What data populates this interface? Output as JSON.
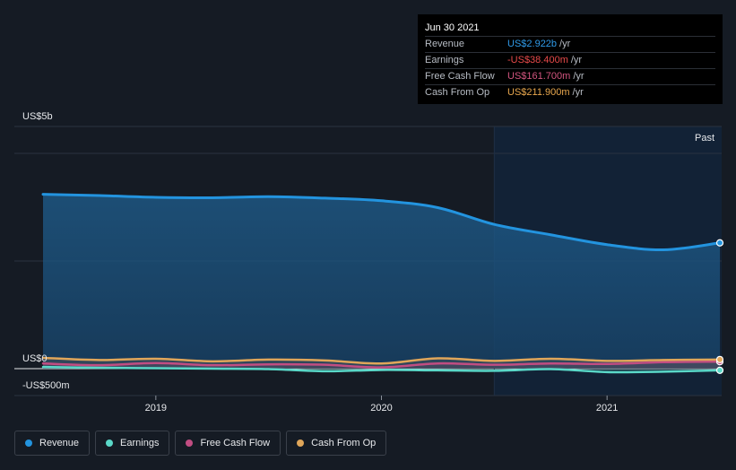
{
  "tooltip": {
    "date": "Jun 30 2021",
    "rows": [
      {
        "label": "Revenue",
        "value": "US$2.922b",
        "unit": "/yr",
        "color": "#2f9ae8"
      },
      {
        "label": "Earnings",
        "value": "-US$38.400m",
        "unit": "/yr",
        "color": "#e84a4a"
      },
      {
        "label": "Free Cash Flow",
        "value": "US$161.700m",
        "unit": "/yr",
        "color": "#d2557f"
      },
      {
        "label": "Cash From Op",
        "value": "US$211.900m",
        "unit": "/yr",
        "color": "#e8a74e"
      }
    ]
  },
  "legend": [
    {
      "label": "Revenue",
      "color": "#2394df"
    },
    {
      "label": "Earnings",
      "color": "#5ad8c8"
    },
    {
      "label": "Free Cash Flow",
      "color": "#c14d82"
    },
    {
      "label": "Cash From Op",
      "color": "#e0a65a"
    }
  ],
  "chart_data": {
    "type": "line",
    "title": "",
    "y_unit_labels": {
      "top": "US$5b",
      "zero": "US$0",
      "bottom": "-US$500m"
    },
    "ylim": [
      -500,
      5000
    ],
    "past_label": "Past",
    "x_ticks": [
      {
        "label": "2019",
        "x": 2019.0
      },
      {
        "label": "2020",
        "x": 2020.0
      },
      {
        "label": "2021",
        "x": 2021.0
      }
    ],
    "xlim": [
      2018.5,
      2021.5
    ],
    "past_start": 2020.5,
    "series": [
      {
        "name": "Revenue",
        "color": "#2394df",
        "fill": true,
        "points": [
          [
            2018.5,
            4050
          ],
          [
            2018.75,
            4020
          ],
          [
            2019.0,
            3980
          ],
          [
            2019.25,
            3970
          ],
          [
            2019.5,
            3995
          ],
          [
            2019.75,
            3960
          ],
          [
            2020.0,
            3900
          ],
          [
            2020.25,
            3740
          ],
          [
            2020.5,
            3350
          ],
          [
            2020.75,
            3110
          ],
          [
            2021.0,
            2880
          ],
          [
            2021.25,
            2760
          ],
          [
            2021.5,
            2922
          ]
        ]
      },
      {
        "name": "Earnings",
        "color": "#5ad8c8",
        "fill": false,
        "points": [
          [
            2018.5,
            40
          ],
          [
            2018.75,
            20
          ],
          [
            2019.0,
            10
          ],
          [
            2019.25,
            0
          ],
          [
            2019.5,
            -10
          ],
          [
            2019.75,
            -60
          ],
          [
            2020.0,
            -30
          ],
          [
            2020.25,
            -40
          ],
          [
            2020.5,
            -50
          ],
          [
            2020.75,
            -10
          ],
          [
            2021.0,
            -80
          ],
          [
            2021.25,
            -70
          ],
          [
            2021.5,
            -38.4
          ]
        ]
      },
      {
        "name": "Free Cash Flow",
        "color": "#c14d82",
        "fill": false,
        "points": [
          [
            2018.5,
            120
          ],
          [
            2018.75,
            80
          ],
          [
            2019.0,
            130
          ],
          [
            2019.25,
            80
          ],
          [
            2019.5,
            100
          ],
          [
            2019.75,
            90
          ],
          [
            2020.0,
            30
          ],
          [
            2020.25,
            120
          ],
          [
            2020.5,
            90
          ],
          [
            2020.75,
            120
          ],
          [
            2021.0,
            110
          ],
          [
            2021.25,
            150
          ],
          [
            2021.5,
            161.7
          ]
        ]
      },
      {
        "name": "Cash From Op",
        "color": "#e0a65a",
        "fill": false,
        "points": [
          [
            2018.5,
            250
          ],
          [
            2018.75,
            200
          ],
          [
            2019.0,
            230
          ],
          [
            2019.25,
            170
          ],
          [
            2019.5,
            210
          ],
          [
            2019.75,
            190
          ],
          [
            2020.0,
            120
          ],
          [
            2020.25,
            240
          ],
          [
            2020.5,
            180
          ],
          [
            2020.75,
            230
          ],
          [
            2021.0,
            180
          ],
          [
            2021.25,
            200
          ],
          [
            2021.5,
            211.9
          ]
        ]
      }
    ]
  }
}
